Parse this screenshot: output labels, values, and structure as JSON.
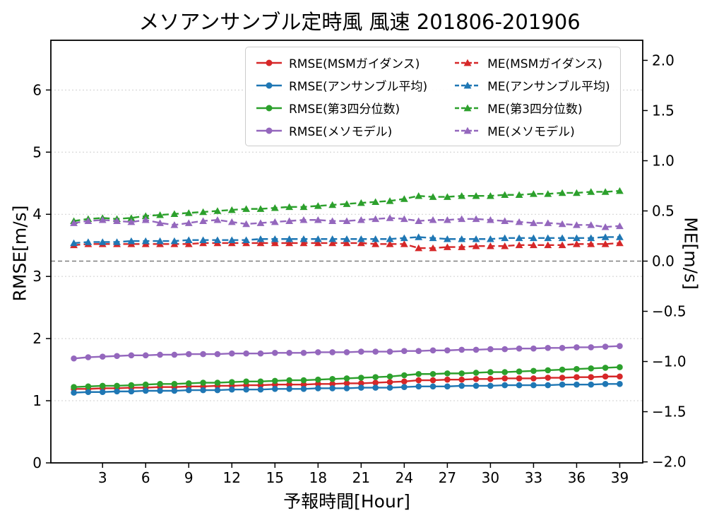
{
  "title": "メソアンサンブル定時風 風速 201806-201906",
  "chart_data": {
    "type": "line",
    "title": "メソアンサンブル定時風 風速 201806-201906",
    "xlabel": "予報時間[Hour]",
    "ylabel_left": "RMSE[m/s]",
    "ylabel_right": "ME[m/s]",
    "x_lim": [
      -0.6,
      40.6
    ],
    "yleft_lim": [
      0,
      6.8
    ],
    "yright_lim": [
      -2.01,
      2.2
    ],
    "x_ticks": [
      3,
      6,
      9,
      12,
      15,
      18,
      21,
      24,
      27,
      30,
      33,
      36,
      39
    ],
    "yleft_ticks": [
      0,
      1,
      2,
      3,
      4,
      5,
      6
    ],
    "yright_ticks": [
      -2,
      -1.5,
      -1,
      -0.5,
      0,
      0.5,
      1,
      1.5,
      2
    ],
    "grid": true,
    "zero_line_right": 0,
    "legend_position": "upper center",
    "colors": {
      "red": "#d62728",
      "blue": "#1f77b4",
      "green": "#2ca02c",
      "purple": "#9467bd"
    },
    "x": [
      1,
      2,
      3,
      4,
      5,
      6,
      7,
      8,
      9,
      10,
      11,
      12,
      13,
      14,
      15,
      16,
      17,
      18,
      19,
      20,
      21,
      22,
      23,
      24,
      25,
      26,
      27,
      28,
      29,
      30,
      31,
      32,
      33,
      34,
      35,
      36,
      37,
      38,
      39
    ],
    "series": [
      {
        "name": "RMSE(MSMガイダンス)",
        "axis": "left",
        "color": "#d62728",
        "marker": "circle",
        "dash": false,
        "values": [
          1.19,
          1.19,
          1.2,
          1.2,
          1.21,
          1.21,
          1.22,
          1.22,
          1.23,
          1.23,
          1.24,
          1.24,
          1.25,
          1.25,
          1.26,
          1.26,
          1.26,
          1.27,
          1.27,
          1.28,
          1.28,
          1.29,
          1.3,
          1.31,
          1.33,
          1.33,
          1.34,
          1.34,
          1.35,
          1.35,
          1.36,
          1.36,
          1.36,
          1.37,
          1.37,
          1.38,
          1.38,
          1.39,
          1.39
        ]
      },
      {
        "name": "RMSE(アンサンブル平均)",
        "axis": "left",
        "color": "#1f77b4",
        "marker": "circle",
        "dash": false,
        "values": [
          1.13,
          1.14,
          1.14,
          1.15,
          1.15,
          1.16,
          1.16,
          1.16,
          1.17,
          1.17,
          1.17,
          1.18,
          1.18,
          1.18,
          1.19,
          1.19,
          1.19,
          1.2,
          1.2,
          1.2,
          1.21,
          1.21,
          1.21,
          1.22,
          1.23,
          1.23,
          1.23,
          1.24,
          1.24,
          1.24,
          1.25,
          1.25,
          1.25,
          1.25,
          1.26,
          1.26,
          1.26,
          1.27,
          1.27
        ]
      },
      {
        "name": "RMSE(第3四分位数)",
        "axis": "left",
        "color": "#2ca02c",
        "marker": "circle",
        "dash": false,
        "values": [
          1.22,
          1.23,
          1.24,
          1.24,
          1.25,
          1.26,
          1.27,
          1.27,
          1.28,
          1.29,
          1.29,
          1.3,
          1.31,
          1.31,
          1.32,
          1.33,
          1.33,
          1.34,
          1.35,
          1.36,
          1.37,
          1.38,
          1.39,
          1.41,
          1.43,
          1.43,
          1.44,
          1.44,
          1.45,
          1.46,
          1.46,
          1.47,
          1.48,
          1.49,
          1.5,
          1.51,
          1.52,
          1.53,
          1.54
        ]
      },
      {
        "name": "RMSE(メソモデル)",
        "axis": "left",
        "color": "#9467bd",
        "marker": "circle",
        "dash": false,
        "values": [
          1.68,
          1.7,
          1.71,
          1.72,
          1.73,
          1.73,
          1.74,
          1.74,
          1.75,
          1.75,
          1.75,
          1.76,
          1.76,
          1.76,
          1.77,
          1.77,
          1.77,
          1.78,
          1.78,
          1.78,
          1.79,
          1.79,
          1.79,
          1.8,
          1.8,
          1.81,
          1.81,
          1.82,
          1.82,
          1.83,
          1.83,
          1.84,
          1.84,
          1.85,
          1.85,
          1.86,
          1.86,
          1.87,
          1.88
        ]
      },
      {
        "name": "ME(MSMガイダンス)",
        "axis": "right",
        "color": "#d62728",
        "marker": "triangle",
        "dash": true,
        "values": [
          0.16,
          0.17,
          0.17,
          0.17,
          0.17,
          0.17,
          0.17,
          0.17,
          0.17,
          0.18,
          0.18,
          0.18,
          0.18,
          0.18,
          0.18,
          0.18,
          0.18,
          0.18,
          0.18,
          0.18,
          0.18,
          0.17,
          0.17,
          0.17,
          0.13,
          0.13,
          0.14,
          0.14,
          0.15,
          0.15,
          0.15,
          0.16,
          0.16,
          0.16,
          0.16,
          0.17,
          0.17,
          0.17,
          0.18
        ]
      },
      {
        "name": "ME(アンサンブル平均)",
        "axis": "right",
        "color": "#1f77b4",
        "marker": "triangle",
        "dash": true,
        "values": [
          0.18,
          0.19,
          0.19,
          0.19,
          0.2,
          0.2,
          0.2,
          0.2,
          0.21,
          0.21,
          0.21,
          0.21,
          0.21,
          0.22,
          0.22,
          0.22,
          0.22,
          0.22,
          0.22,
          0.22,
          0.22,
          0.22,
          0.22,
          0.23,
          0.24,
          0.23,
          0.22,
          0.22,
          0.22,
          0.22,
          0.23,
          0.23,
          0.23,
          0.23,
          0.23,
          0.23,
          0.23,
          0.24,
          0.24
        ]
      },
      {
        "name": "ME(第3四分位数)",
        "axis": "right",
        "color": "#2ca02c",
        "marker": "triangle",
        "dash": true,
        "values": [
          0.4,
          0.42,
          0.43,
          0.42,
          0.43,
          0.45,
          0.46,
          0.47,
          0.48,
          0.49,
          0.5,
          0.51,
          0.52,
          0.52,
          0.53,
          0.54,
          0.54,
          0.55,
          0.56,
          0.57,
          0.58,
          0.59,
          0.6,
          0.62,
          0.65,
          0.64,
          0.64,
          0.65,
          0.65,
          0.65,
          0.66,
          0.66,
          0.67,
          0.67,
          0.68,
          0.68,
          0.69,
          0.69,
          0.7
        ]
      },
      {
        "name": "ME(メソモデル)",
        "axis": "right",
        "color": "#9467bd",
        "marker": "triangle",
        "dash": true,
        "values": [
          0.38,
          0.4,
          0.41,
          0.4,
          0.39,
          0.41,
          0.38,
          0.36,
          0.38,
          0.4,
          0.41,
          0.39,
          0.37,
          0.38,
          0.39,
          0.4,
          0.41,
          0.41,
          0.4,
          0.4,
          0.41,
          0.42,
          0.43,
          0.42,
          0.4,
          0.41,
          0.41,
          0.42,
          0.42,
          0.41,
          0.4,
          0.39,
          0.38,
          0.38,
          0.37,
          0.36,
          0.36,
          0.34,
          0.35
        ]
      }
    ]
  }
}
